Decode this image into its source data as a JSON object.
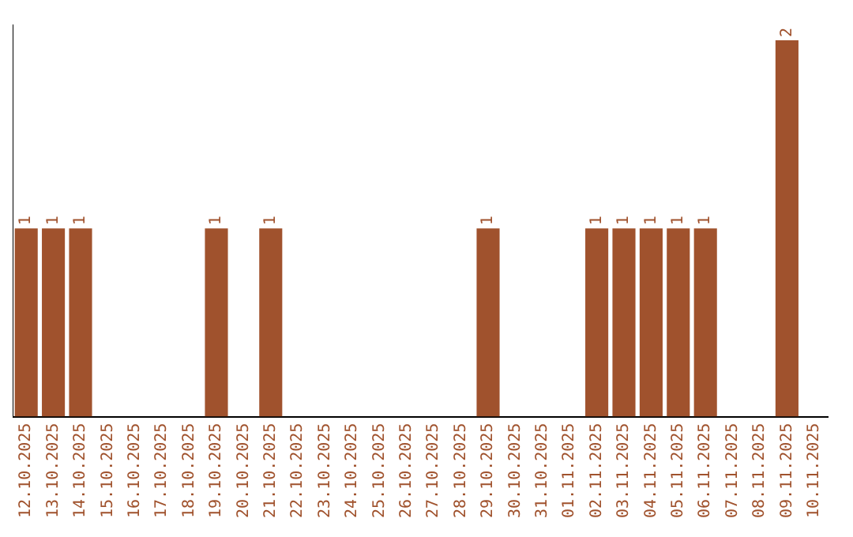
{
  "chart_data": {
    "type": "bar",
    "categories": [
      "12.10.2025",
      "13.10.2025",
      "14.10.2025",
      "15.10.2025",
      "16.10.2025",
      "17.10.2025",
      "18.10.2025",
      "19.10.2025",
      "20.10.2025",
      "21.10.2025",
      "22.10.2025",
      "23.10.2025",
      "24.10.2025",
      "25.10.2025",
      "26.10.2025",
      "27.10.2025",
      "28.10.2025",
      "29.10.2025",
      "30.10.2025",
      "31.10.2025",
      "01.11.2025",
      "02.11.2025",
      "03.11.2025",
      "04.11.2025",
      "05.11.2025",
      "06.11.2025",
      "07.11.2025",
      "08.11.2025",
      "09.11.2025",
      "10.11.2025"
    ],
    "values": [
      1,
      1,
      1,
      0,
      0,
      0,
      0,
      1,
      0,
      1,
      0,
      0,
      0,
      0,
      0,
      0,
      0,
      1,
      0,
      0,
      0,
      1,
      1,
      1,
      1,
      1,
      0,
      0,
      2,
      0
    ],
    "value_labels": [
      "1",
      "1",
      "1",
      null,
      null,
      null,
      null,
      "1",
      null,
      "1",
      null,
      null,
      null,
      null,
      null,
      null,
      null,
      "1",
      null,
      null,
      null,
      "1",
      "1",
      "1",
      "1",
      "1",
      null,
      null,
      "2",
      null
    ],
    "color": "#a0522d",
    "ylim": [
      0,
      2.08
    ],
    "tick_labels": "x",
    "grid": false,
    "legend": false
  }
}
